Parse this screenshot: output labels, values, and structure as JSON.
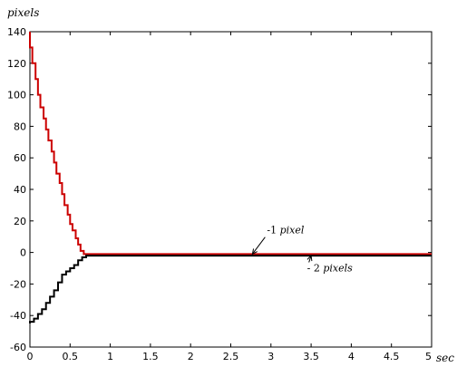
{
  "chart_data": {
    "type": "line",
    "title": "",
    "ylabel": "pixels",
    "xlabel": "sec",
    "xlim": [
      0,
      5
    ],
    "ylim": [
      -60,
      140
    ],
    "xticks": [
      0,
      0.5,
      1,
      1.5,
      2,
      2.5,
      3,
      3.5,
      4,
      4.5,
      5
    ],
    "xtick_labels": [
      "0",
      "0.5",
      "1",
      "1.5",
      "2",
      "2.5",
      "3",
      "3.5",
      "4",
      "4.5",
      "5"
    ],
    "yticks": [
      -60,
      -40,
      -20,
      0,
      20,
      40,
      60,
      80,
      100,
      120,
      140
    ],
    "ytick_labels": [
      "-60",
      "-40",
      "-20",
      "0",
      "20",
      "40",
      "60",
      "80",
      "100",
      "120",
      "140"
    ],
    "grid": false,
    "series": [
      {
        "color": "#cc0000",
        "step": true,
        "x": [
          0,
          0.03,
          0.07,
          0.1,
          0.13,
          0.17,
          0.2,
          0.23,
          0.27,
          0.3,
          0.33,
          0.37,
          0.4,
          0.43,
          0.47,
          0.5,
          0.53,
          0.57,
          0.6,
          0.63,
          0.67,
          0.7,
          0.73,
          5.0
        ],
        "y": [
          140,
          130,
          120,
          110,
          100,
          92,
          85,
          78,
          71,
          64,
          57,
          50,
          44,
          37,
          30,
          24,
          18,
          14,
          9,
          5,
          1,
          -1,
          -1,
          -1
        ]
      },
      {
        "color": "#000000",
        "step": true,
        "x": [
          0,
          0.05,
          0.1,
          0.15,
          0.2,
          0.25,
          0.3,
          0.35,
          0.4,
          0.45,
          0.5,
          0.55,
          0.6,
          0.65,
          0.7,
          0.75,
          5.0
        ],
        "y": [
          -45,
          -44,
          -42,
          -39,
          -36,
          -32,
          -28,
          -24,
          -19,
          -14,
          -12,
          -10,
          -8,
          -5,
          -3,
          -2,
          -2
        ]
      }
    ],
    "annotations": [
      {
        "text_plain": "-1 ",
        "text_italic": "pixel",
        "x": 2.95,
        "y": 12,
        "arrow_to": [
          2.77,
          -1
        ]
      },
      {
        "text_plain": "- 2 ",
        "text_italic": "pixels",
        "x": 3.45,
        "y": -12,
        "arrow_to": [
          3.5,
          -2
        ]
      }
    ]
  }
}
